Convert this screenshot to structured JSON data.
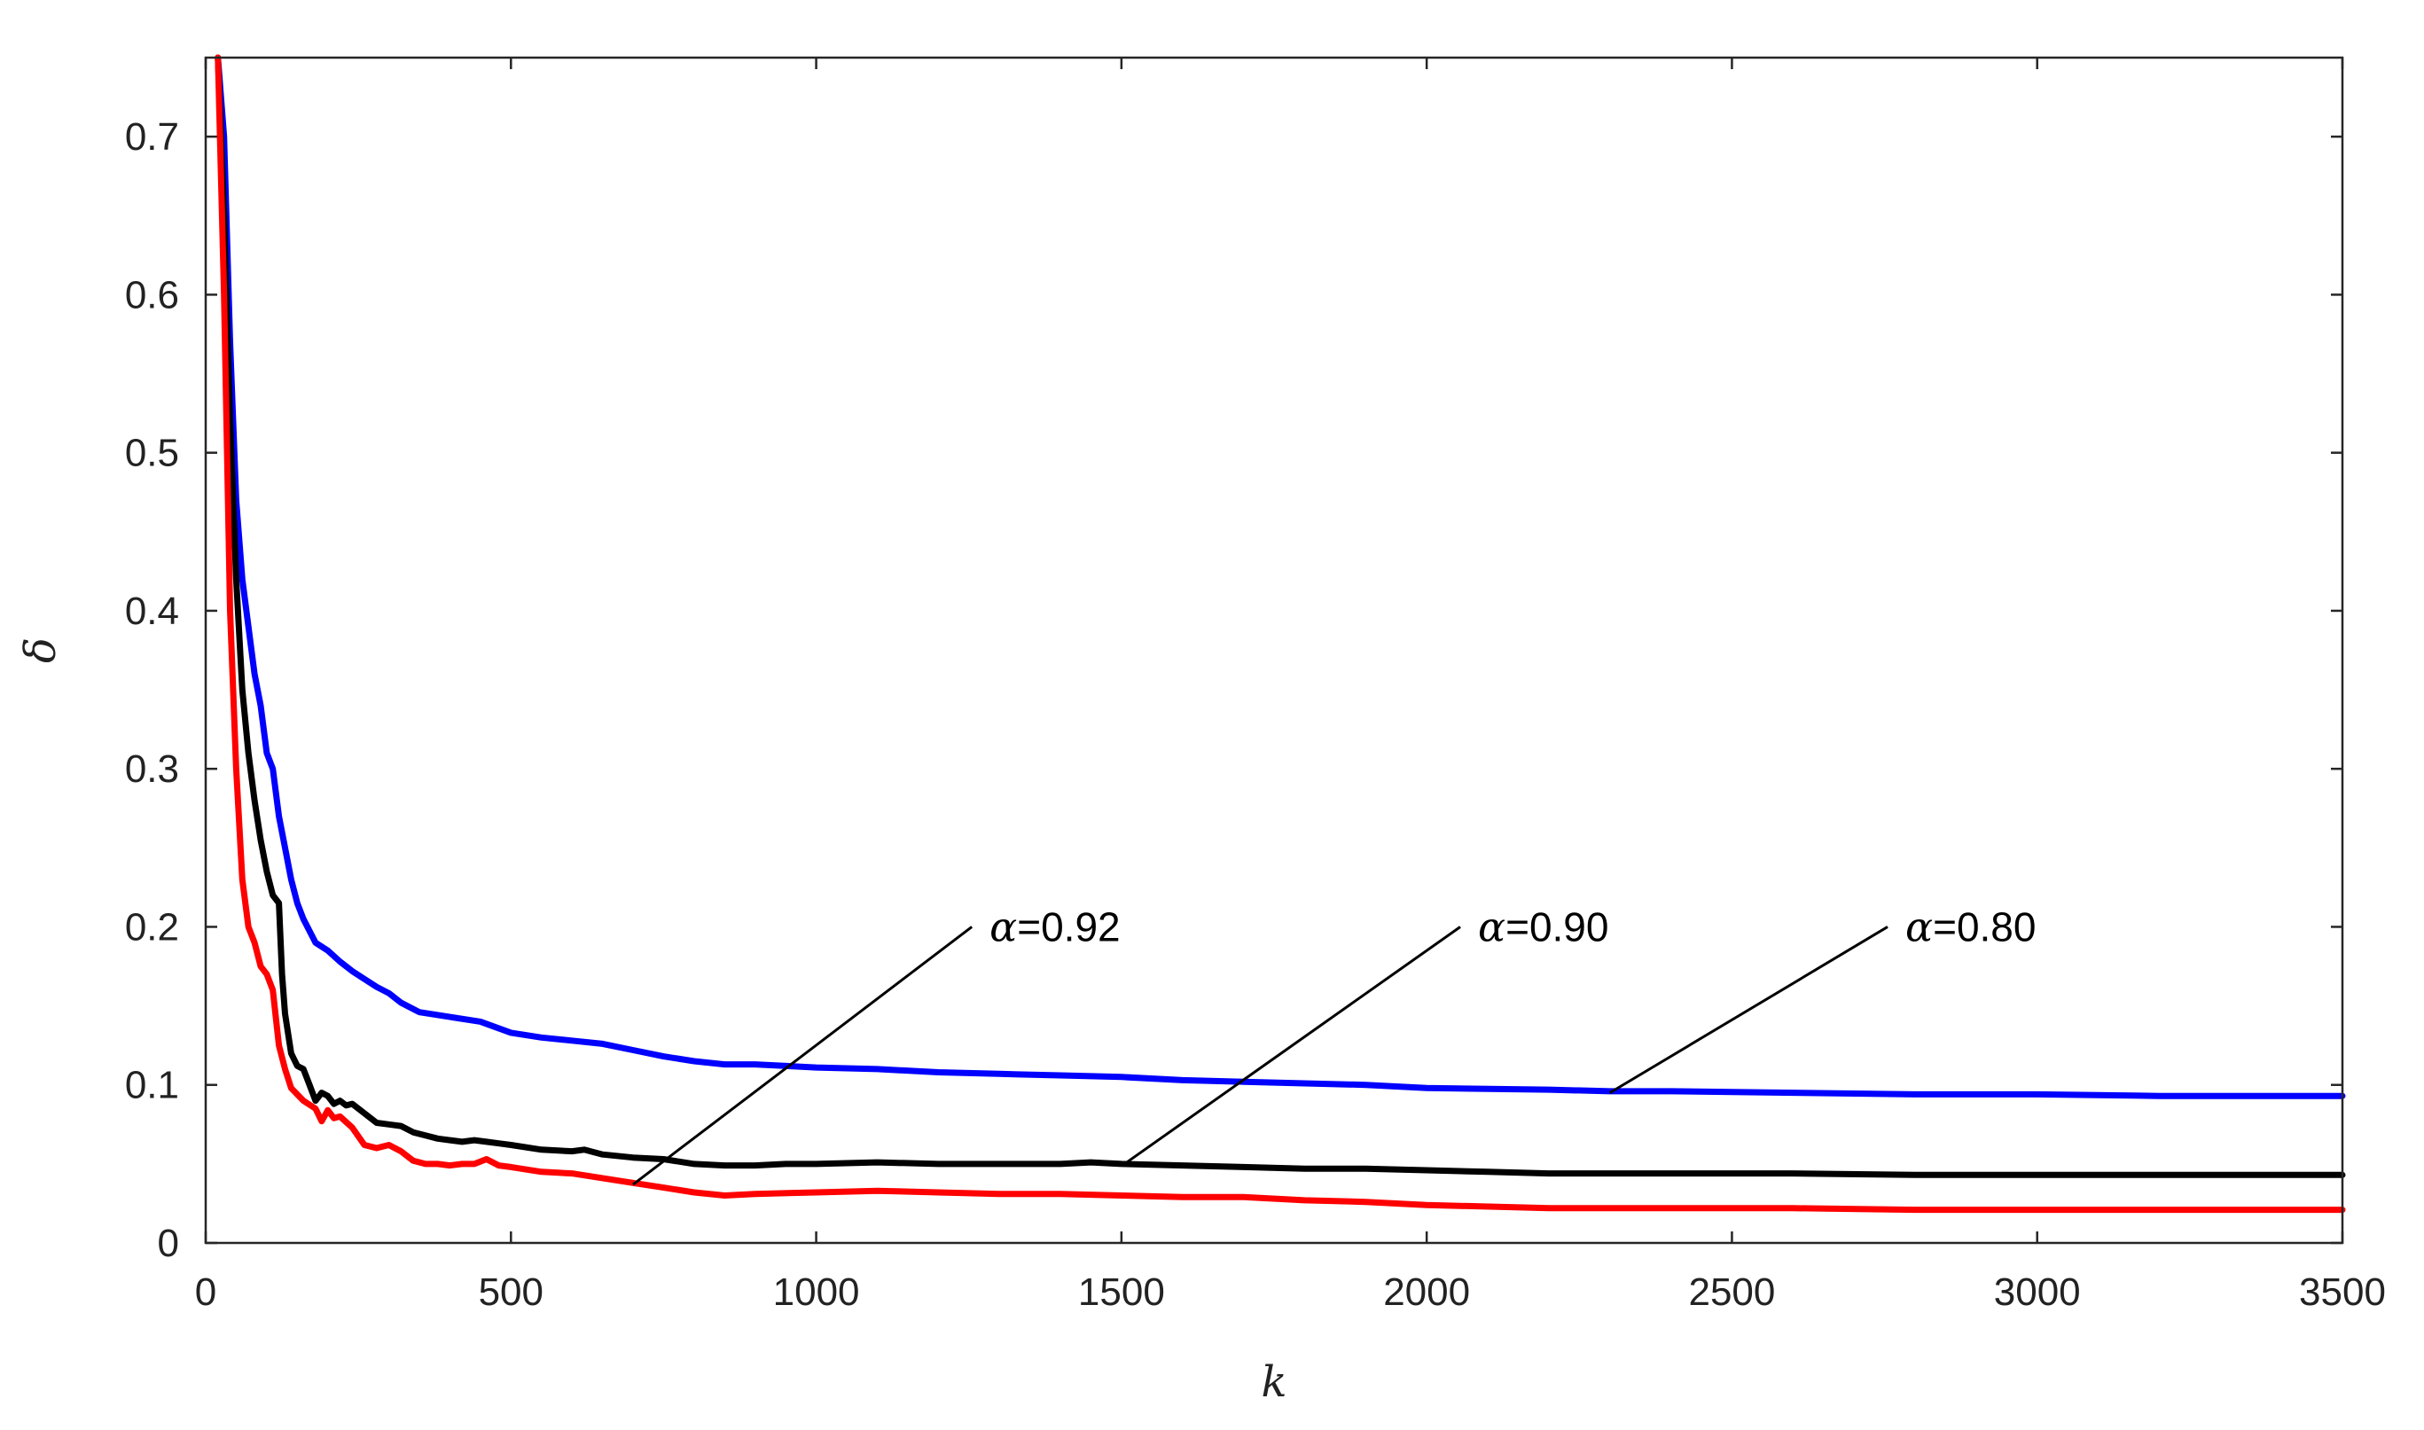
{
  "chart_data": {
    "type": "line",
    "title": "",
    "xlabel": "k",
    "ylabel": "δ",
    "xlim": [
      0,
      3500
    ],
    "ylim": [
      0,
      0.75
    ],
    "grid": false,
    "legend": "none",
    "xticks": [
      0,
      500,
      1000,
      1500,
      2000,
      2500,
      3000,
      3500
    ],
    "xtick_labels": [
      "0",
      "500",
      "1000",
      "1500",
      "2000",
      "2500",
      "3000",
      "3500"
    ],
    "yticks": [
      0,
      0.1,
      0.2,
      0.3,
      0.4,
      0.5,
      0.6,
      0.7
    ],
    "ytick_labels": [
      "0",
      "0.1",
      "0.2",
      "0.3",
      "0.4",
      "0.5",
      "0.6",
      "0.7"
    ],
    "series": [
      {
        "color": "#0000ff",
        "x": [
          20,
          30,
          40,
          50,
          60,
          70,
          80,
          90,
          100,
          110,
          120,
          130,
          140,
          150,
          160,
          180,
          200,
          220,
          240,
          260,
          280,
          300,
          320,
          350,
          400,
          450,
          500,
          550,
          600,
          650,
          700,
          750,
          800,
          850,
          900,
          1000,
          1100,
          1200,
          1300,
          1400,
          1500,
          1600,
          1700,
          1800,
          1900,
          2000,
          2200,
          2300,
          2400,
          2600,
          2800,
          3000,
          3200,
          3400,
          3500
        ],
        "y": [
          0.75,
          0.7,
          0.57,
          0.47,
          0.42,
          0.39,
          0.36,
          0.34,
          0.31,
          0.3,
          0.27,
          0.25,
          0.23,
          0.215,
          0.205,
          0.19,
          0.185,
          0.178,
          0.172,
          0.167,
          0.162,
          0.158,
          0.152,
          0.146,
          0.143,
          0.14,
          0.133,
          0.13,
          0.128,
          0.126,
          0.122,
          0.118,
          0.115,
          0.113,
          0.113,
          0.111,
          0.11,
          0.108,
          0.107,
          0.106,
          0.105,
          0.103,
          0.102,
          0.101,
          0.1,
          0.098,
          0.097,
          0.096,
          0.096,
          0.095,
          0.094,
          0.094,
          0.093,
          0.093,
          0.093
        ]
      },
      {
        "color": "#000000",
        "x": [
          20,
          30,
          40,
          50,
          60,
          70,
          80,
          90,
          100,
          110,
          120,
          125,
          130,
          140,
          150,
          160,
          170,
          180,
          190,
          200,
          210,
          220,
          230,
          240,
          260,
          280,
          300,
          320,
          340,
          360,
          380,
          400,
          420,
          440,
          460,
          480,
          500,
          550,
          600,
          620,
          650,
          700,
          750,
          800,
          850,
          900,
          950,
          1000,
          1100,
          1200,
          1300,
          1400,
          1450,
          1500,
          1600,
          1700,
          1800,
          1900,
          2000,
          2100,
          2200,
          2400,
          2600,
          2800,
          3000,
          3200,
          3400,
          3500
        ],
        "y": [
          0.75,
          0.65,
          0.52,
          0.42,
          0.35,
          0.31,
          0.28,
          0.255,
          0.235,
          0.22,
          0.215,
          0.17,
          0.145,
          0.12,
          0.112,
          0.11,
          0.1,
          0.09,
          0.095,
          0.093,
          0.088,
          0.09,
          0.087,
          0.088,
          0.082,
          0.076,
          0.075,
          0.074,
          0.07,
          0.068,
          0.066,
          0.065,
          0.064,
          0.065,
          0.064,
          0.063,
          0.062,
          0.059,
          0.058,
          0.059,
          0.056,
          0.054,
          0.053,
          0.05,
          0.049,
          0.049,
          0.05,
          0.05,
          0.051,
          0.05,
          0.05,
          0.05,
          0.051,
          0.05,
          0.049,
          0.048,
          0.047,
          0.047,
          0.046,
          0.045,
          0.044,
          0.044,
          0.044,
          0.043,
          0.043,
          0.043,
          0.043,
          0.043
        ]
      },
      {
        "color": "#ff0000",
        "x": [
          20,
          30,
          40,
          50,
          60,
          70,
          80,
          90,
          100,
          110,
          120,
          130,
          140,
          160,
          180,
          190,
          200,
          210,
          220,
          240,
          260,
          280,
          300,
          320,
          340,
          360,
          380,
          400,
          420,
          440,
          460,
          480,
          500,
          550,
          600,
          650,
          700,
          750,
          800,
          850,
          900,
          1000,
          1100,
          1200,
          1300,
          1400,
          1500,
          1600,
          1700,
          1800,
          1900,
          2000,
          2200,
          2400,
          2600,
          2800,
          3000,
          3200,
          3400,
          3500
        ],
        "y": [
          0.75,
          0.6,
          0.4,
          0.3,
          0.23,
          0.2,
          0.19,
          0.175,
          0.17,
          0.16,
          0.125,
          0.11,
          0.098,
          0.09,
          0.085,
          0.077,
          0.084,
          0.079,
          0.08,
          0.073,
          0.062,
          0.06,
          0.062,
          0.058,
          0.052,
          0.05,
          0.05,
          0.049,
          0.05,
          0.05,
          0.053,
          0.049,
          0.048,
          0.045,
          0.044,
          0.041,
          0.038,
          0.035,
          0.032,
          0.03,
          0.031,
          0.032,
          0.033,
          0.032,
          0.031,
          0.031,
          0.03,
          0.029,
          0.029,
          0.027,
          0.026,
          0.024,
          0.022,
          0.022,
          0.022,
          0.021,
          0.021,
          0.021,
          0.021,
          0.021
        ]
      }
    ],
    "annotations": [
      {
        "greek": "α",
        "text": "=0.92",
        "x1": 700,
        "y1": 0.037,
        "x2": 1255,
        "y2": 0.2
      },
      {
        "greek": "α",
        "text": "=0.90",
        "x1": 1505,
        "y1": 0.05,
        "x2": 2055,
        "y2": 0.2
      },
      {
        "greek": "α",
        "text": "=0.80",
        "x1": 2300,
        "y1": 0.095,
        "x2": 2755,
        "y2": 0.2
      }
    ]
  }
}
